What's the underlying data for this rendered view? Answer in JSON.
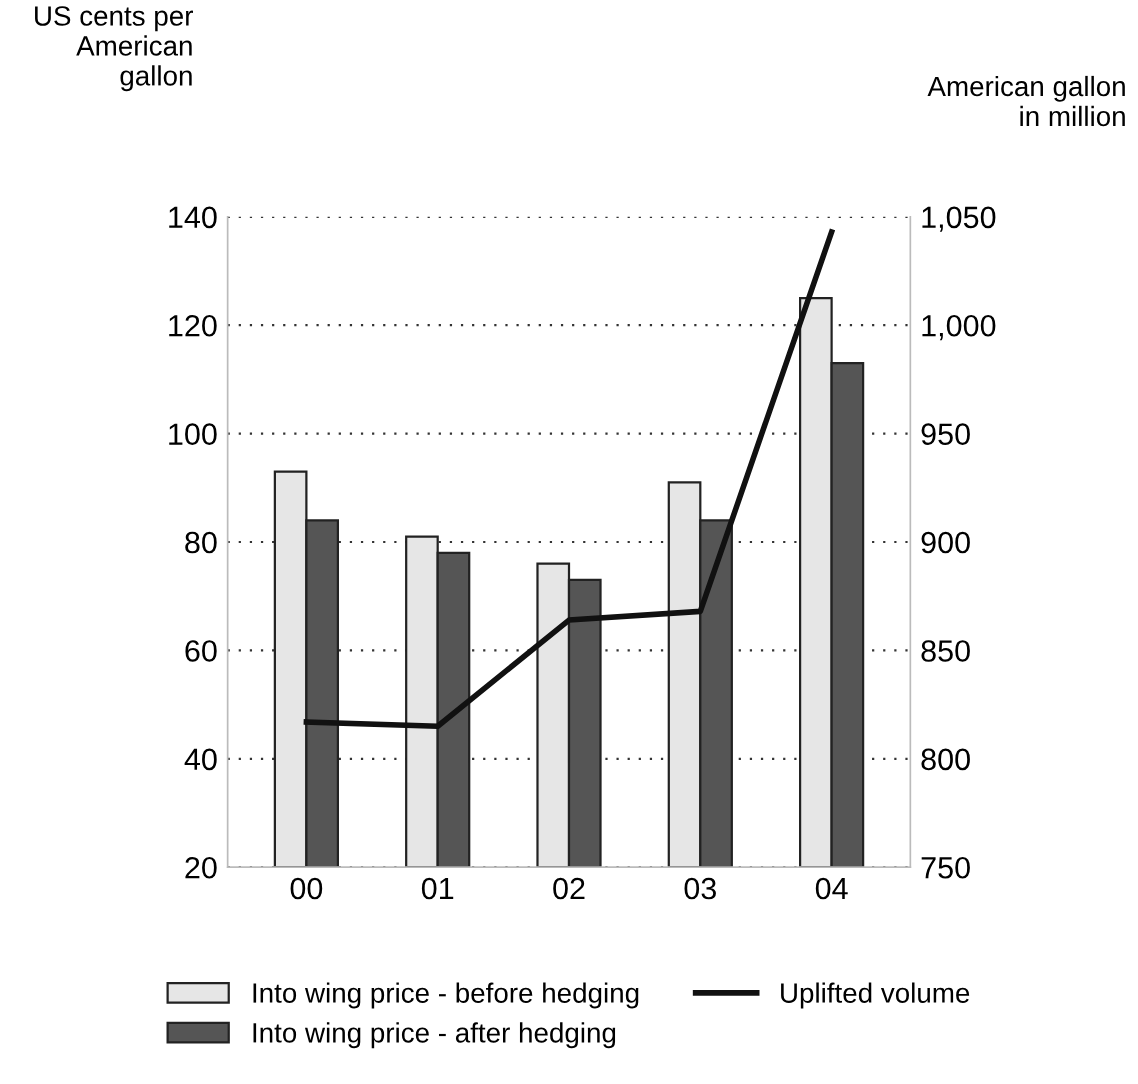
{
  "chart_data": {
    "type": "bar",
    "ylabel": "US cents per\nAmerican\ngallon",
    "y2label": "American gallon\nin million",
    "categories": [
      "00",
      "01",
      "02",
      "03",
      "04"
    ],
    "series": [
      {
        "name": "Into wing price - before hedging",
        "color": "#e6e6e6",
        "values": [
          93,
          81,
          76,
          91,
          125
        ]
      },
      {
        "name": "Into wing price - after hedging",
        "color": "#555555",
        "values": [
          84,
          78,
          73,
          84,
          113
        ]
      },
      {
        "name": "Uplifted volume",
        "type": "line",
        "axis": "y2",
        "color": "#111111",
        "values": [
          817,
          815,
          864,
          868,
          1043
        ]
      }
    ],
    "ylim": [
      20,
      140
    ],
    "yticks": [
      20,
      40,
      60,
      80,
      100,
      120,
      140
    ],
    "y2lim": [
      750,
      1050
    ],
    "y2ticks": [
      750,
      800,
      850,
      900,
      950,
      {
        "value": 1000,
        "label": "1,000"
      },
      {
        "value": 1050,
        "label": "1,050"
      }
    ],
    "grid": "y",
    "legend": "bottom",
    "marker": "none",
    "line_style": "solid"
  }
}
